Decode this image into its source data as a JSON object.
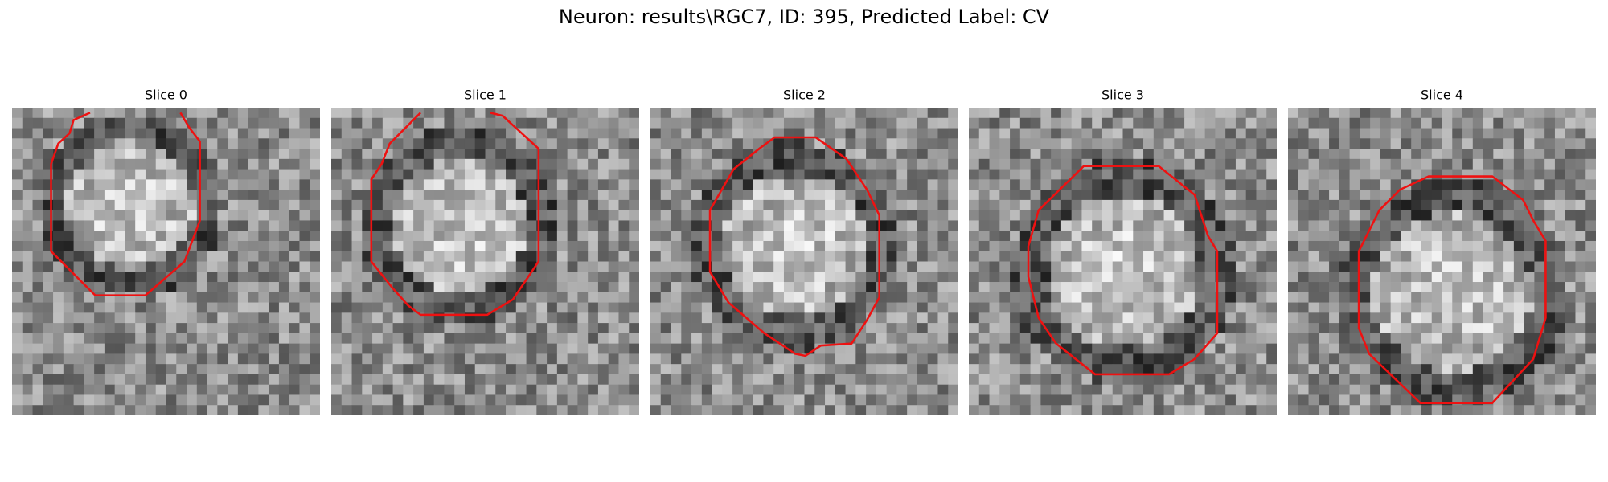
{
  "header": {
    "title": "Neuron: results\\RGC7, ID: 395, Predicted Label: CV"
  },
  "panels": [
    {
      "title": "Slice 0"
    },
    {
      "title": "Slice 1"
    },
    {
      "title": "Slice 2"
    },
    {
      "title": "Slice 3"
    },
    {
      "title": "Slice 4"
    }
  ]
}
